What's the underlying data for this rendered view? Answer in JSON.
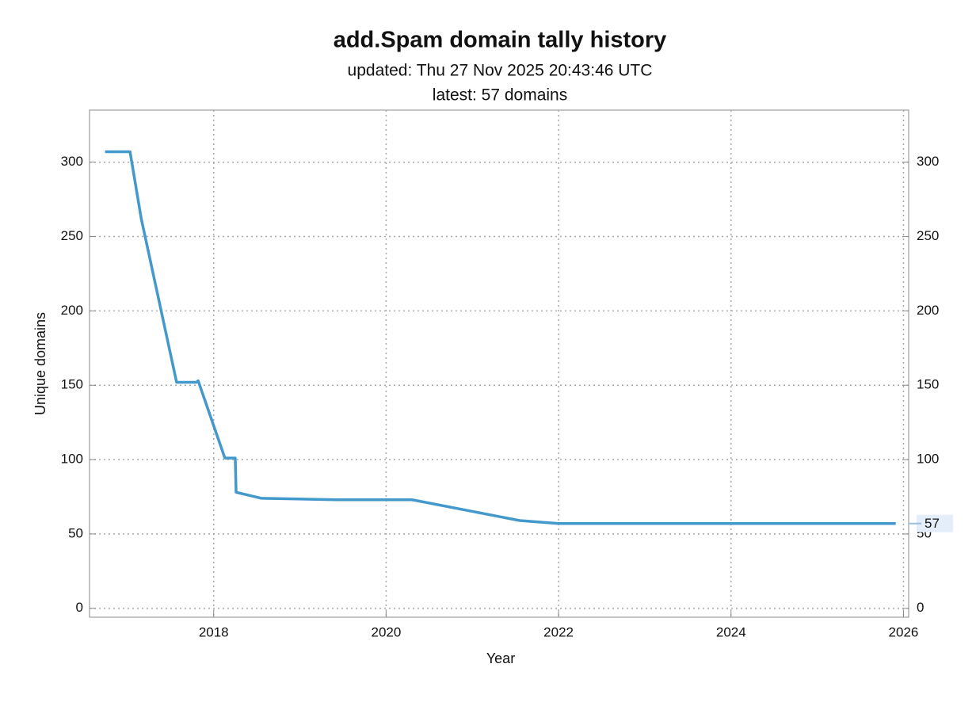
{
  "chart_data": {
    "type": "line",
    "title": "add.Spam domain tally history",
    "subtitle": "updated: Thu 27 Nov 2025 20:43:46 UTC",
    "subtitle2": "latest: 57 domains",
    "xlabel": "Year",
    "ylabel": "Unique domains",
    "x": [
      2016.74,
      2017.03,
      2017.16,
      2017.57,
      2017.8,
      2017.82,
      2018.13,
      2018.25,
      2018.26,
      2018.55,
      2019.42,
      2020.3,
      2021.55,
      2022.0,
      2025.91
    ],
    "series": [
      {
        "name": "domains",
        "color": "#4399cc",
        "values": [
          307,
          307,
          262,
          152,
          152,
          153,
          101,
          101,
          78,
          74,
          73,
          73,
          59,
          57,
          57
        ]
      }
    ],
    "xlim": [
      2016.56,
      2026.06
    ],
    "ylim": [
      -6,
      335
    ],
    "xticks": [
      2018,
      2020,
      2022,
      2024,
      2026
    ],
    "yticks": [
      0,
      50,
      100,
      150,
      200,
      250,
      300
    ],
    "last_value_label": 57,
    "grid": true,
    "mirror_right_axis": true
  }
}
